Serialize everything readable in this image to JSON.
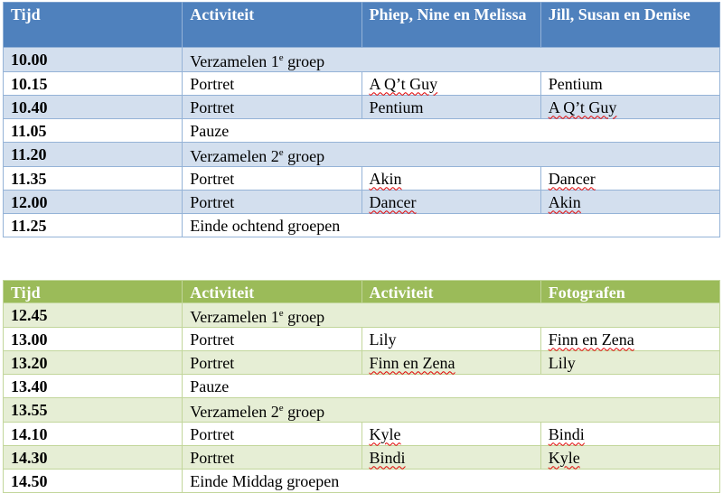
{
  "colors": {
    "blue_header": "#4f81bd",
    "blue_band": "#d3dfee",
    "green_header": "#9bbb59",
    "green_band": "#e6eed5"
  },
  "tables": [
    {
      "headers": [
        "Tijd",
        "Activiteit",
        "Phiep, Nine en Melissa",
        "Jill, Susan en Denise"
      ],
      "rows": [
        {
          "time": "10.00",
          "activity": "Verzamelen 1",
          "sup": "e",
          "rest": " groep",
          "merged": true
        },
        {
          "time": "10.15",
          "activity": "Portret",
          "c3": "A Q’t Guy",
          "c4": "Pentium"
        },
        {
          "time": "10.40",
          "activity": "Portret",
          "c3": "Pentium",
          "c4": "A Q’t Guy"
        },
        {
          "time": "11.05",
          "activity": "Pauze",
          "merged": true
        },
        {
          "time": "11.20",
          "activity": "Verzamelen 2",
          "sup": "e",
          "rest": " groep",
          "merged": true
        },
        {
          "time": "11.35",
          "activity": "Portret",
          "c3": "Akin",
          "c4": "Dancer"
        },
        {
          "time": "12.00",
          "activity": "Portret",
          "c3": "Dancer",
          "c4": "Akin"
        },
        {
          "time": "11.25",
          "activity": "Einde ochtend groepen",
          "merged": true
        }
      ]
    },
    {
      "headers": [
        "Tijd",
        "Activiteit",
        "Activiteit",
        "Fotografen"
      ],
      "rows": [
        {
          "time": "12.45",
          "activity": "Verzamelen 1",
          "sup": "e",
          "rest": " groep",
          "merged": true
        },
        {
          "time": "13.00",
          "activity": "Portret",
          "c3": "Lily",
          "c4": "Finn en Zena"
        },
        {
          "time": "13.20",
          "activity": "Portret",
          "c3": "Finn en Zena",
          "c4": "Lily"
        },
        {
          "time": "13.40",
          "activity": "Pauze",
          "merged": true
        },
        {
          "time": "13.55",
          "activity": "Verzamelen 2",
          "sup": "e",
          "rest": " groep",
          "merged": true
        },
        {
          "time": "14.10",
          "activity": "Portret",
          "c3": "Kyle",
          "c4": "Bindi"
        },
        {
          "time": "14.30",
          "activity": "Portret",
          "c3": "Bindi",
          "c4": "Kyle"
        },
        {
          "time": "14.50",
          "activity": "Einde Middag groepen",
          "merged": true
        }
      ]
    }
  ]
}
